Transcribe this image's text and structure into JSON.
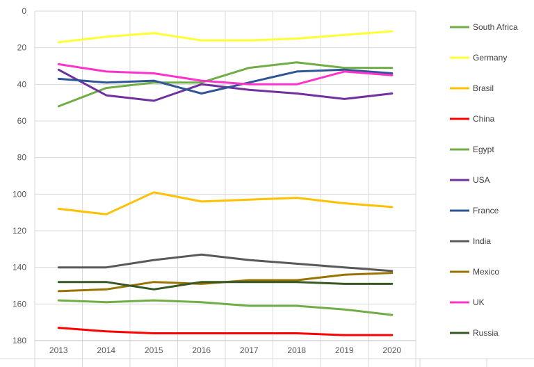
{
  "chart_data": {
    "type": "line",
    "title": "",
    "xlabel": "",
    "ylabel": "",
    "x": [
      "2013",
      "2014",
      "2015",
      "2016",
      "2017",
      "2018",
      "2019",
      "2020"
    ],
    "ylim": [
      0,
      180
    ],
    "y_inverted": true,
    "yticks": [
      "0",
      "20",
      "40",
      "60",
      "80",
      "100",
      "120",
      "140",
      "160",
      "180"
    ],
    "grid": true,
    "legend_position": "right",
    "series": [
      {
        "name": "South Africa",
        "color": "#70AD47",
        "values": [
          52,
          42,
          39,
          39,
          31,
          28,
          31,
          31
        ]
      },
      {
        "name": "Germany",
        "color": "#FFFF33",
        "values": [
          17,
          14,
          12,
          16,
          16,
          15,
          13,
          11
        ]
      },
      {
        "name": "Brasil",
        "color": "#FFC000",
        "values": [
          108,
          111,
          99,
          104,
          103,
          102,
          105,
          107
        ]
      },
      {
        "name": "China",
        "color": "#FF0000",
        "values": [
          173,
          175,
          176,
          176,
          176,
          176,
          177,
          177
        ]
      },
      {
        "name": "Egypt",
        "color": "#70AD47",
        "values": [
          158,
          159,
          158,
          159,
          161,
          161,
          163,
          166
        ]
      },
      {
        "name": "USA",
        "color": "#7030A0",
        "values": [
          32,
          46,
          49,
          40,
          43,
          45,
          48,
          45
        ]
      },
      {
        "name": "France",
        "color": "#2F5597",
        "values": [
          37,
          39,
          38,
          45,
          39,
          33,
          32,
          34
        ]
      },
      {
        "name": "India",
        "color": "#595959",
        "values": [
          140,
          140,
          136,
          133,
          136,
          138,
          140,
          142
        ]
      },
      {
        "name": "Mexico",
        "color": "#997300",
        "values": [
          153,
          152,
          148,
          149,
          147,
          147,
          144,
          143
        ]
      },
      {
        "name": "UK",
        "color": "#FF33CC",
        "values": [
          29,
          33,
          34,
          38,
          40,
          40,
          33,
          35
        ]
      },
      {
        "name": "Russia",
        "color": "#385723",
        "values": [
          148,
          148,
          152,
          148,
          148,
          148,
          149,
          149
        ]
      }
    ]
  }
}
